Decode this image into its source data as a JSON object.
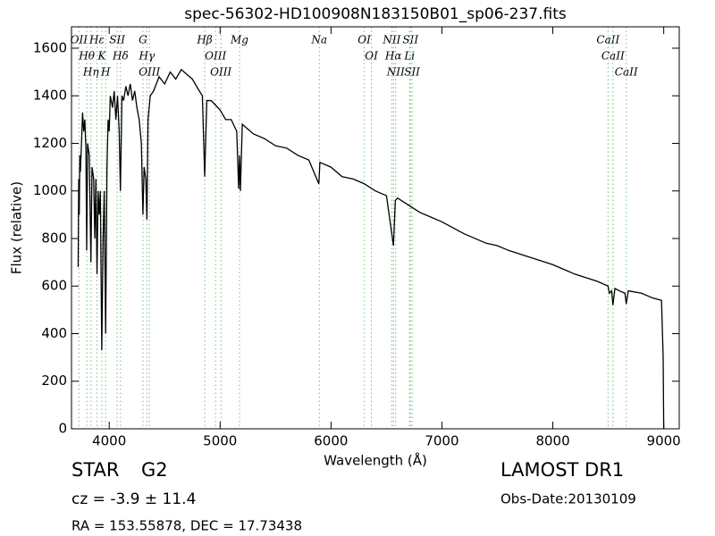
{
  "chart_data": {
    "type": "line",
    "title": "spec-56302-HD100908N183150B01_sp06-237.fits",
    "xlabel": "Wavelength (Å)",
    "ylabel": "Flux (relative)",
    "xlim": [
      3660,
      9140
    ],
    "ylim": [
      0,
      1690
    ],
    "xticks": [
      4000,
      5000,
      6000,
      7000,
      8000,
      9000
    ],
    "yticks": [
      0,
      200,
      400,
      600,
      800,
      1000,
      1200,
      1400,
      1600
    ],
    "x": [
      3720,
      3725,
      3730,
      3735,
      3740,
      3750,
      3760,
      3770,
      3780,
      3790,
      3797,
      3805,
      3820,
      3835,
      3845,
      3860,
      3870,
      3880,
      3890,
      3900,
      3910,
      3920,
      3933,
      3945,
      3955,
      3968,
      3980,
      3990,
      4000,
      4010,
      4030,
      4045,
      4060,
      4075,
      4090,
      4101,
      4115,
      4130,
      4150,
      4170,
      4190,
      4210,
      4230,
      4250,
      4270,
      4290,
      4304,
      4315,
      4330,
      4340,
      4350,
      4370,
      4400,
      4450,
      4500,
      4550,
      4600,
      4650,
      4700,
      4750,
      4800,
      4840,
      4861,
      4880,
      4920,
      4960,
      5000,
      5050,
      5100,
      5150,
      5167,
      5175,
      5183,
      5200,
      5250,
      5300,
      5400,
      5500,
      5600,
      5700,
      5800,
      5890,
      5900,
      6000,
      6100,
      6200,
      6300,
      6400,
      6500,
      6563,
      6580,
      6600,
      6700,
      6800,
      6900,
      7000,
      7200,
      7400,
      7500,
      7600,
      7800,
      8000,
      8200,
      8400,
      8498,
      8510,
      8530,
      8542,
      8560,
      8600,
      8650,
      8662,
      8680,
      8800,
      8900,
      8980,
      8995,
      9000
    ],
    "series": [
      {
        "name": "Flux",
        "color": "#000000",
        "values": [
          680,
          1050,
          900,
          1150,
          1080,
          1200,
          1330,
          1250,
          1300,
          1180,
          750,
          1200,
          1150,
          700,
          1100,
          1050,
          800,
          1050,
          650,
          1000,
          900,
          1000,
          330,
          800,
          1000,
          400,
          1100,
          1300,
          1250,
          1400,
          1350,
          1420,
          1300,
          1400,
          1250,
          1000,
          1400,
          1380,
          1440,
          1400,
          1450,
          1380,
          1420,
          1350,
          1300,
          1200,
          900,
          1100,
          1050,
          880,
          1300,
          1400,
          1420,
          1480,
          1450,
          1500,
          1470,
          1510,
          1490,
          1470,
          1430,
          1400,
          1060,
          1380,
          1380,
          1360,
          1340,
          1300,
          1300,
          1250,
          1010,
          1150,
          1000,
          1280,
          1260,
          1240,
          1220,
          1190,
          1180,
          1150,
          1130,
          1030,
          1120,
          1100,
          1060,
          1050,
          1030,
          1000,
          980,
          770,
          960,
          970,
          940,
          910,
          890,
          870,
          820,
          780,
          770,
          750,
          720,
          690,
          650,
          620,
          600,
          570,
          580,
          520,
          590,
          580,
          570,
          525,
          580,
          570,
          550,
          540,
          300,
          0
        ]
      }
    ],
    "line_color": "#77c077",
    "lines": [
      {
        "name": "OII",
        "wavelength": 3727
      },
      {
        "name": "Hθ",
        "wavelength": 3798
      },
      {
        "name": "Hη",
        "wavelength": 3835
      },
      {
        "name": "Hε",
        "wavelength": 3889
      },
      {
        "name": "K",
        "wavelength": 3934
      },
      {
        "name": "H",
        "wavelength": 3968
      },
      {
        "name": "SII",
        "wavelength": 4072
      },
      {
        "name": "Hδ",
        "wavelength": 4102
      },
      {
        "name": "G",
        "wavelength": 4304
      },
      {
        "name": "Hγ",
        "wavelength": 4340
      },
      {
        "name": "OIII",
        "wavelength": 4363
      },
      {
        "name": "Hβ",
        "wavelength": 4861
      },
      {
        "name": "OIII",
        "wavelength": 4959
      },
      {
        "name": "OIII",
        "wavelength": 5007
      },
      {
        "name": "Mg",
        "wavelength": 5175
      },
      {
        "name": "Na",
        "wavelength": 5894
      },
      {
        "name": "OI",
        "wavelength": 6300
      },
      {
        "name": "OI",
        "wavelength": 6364
      },
      {
        "name": "NII",
        "wavelength": 6548
      },
      {
        "name": "Hα",
        "wavelength": 6563
      },
      {
        "name": "NII",
        "wavelength": 6583
      },
      {
        "name": "Li",
        "wavelength": 6708
      },
      {
        "name": "SII",
        "wavelength": 6716
      },
      {
        "name": "SII",
        "wavelength": 6731
      },
      {
        "name": "CaII",
        "wavelength": 8498
      },
      {
        "name": "CaII",
        "wavelength": 8542
      },
      {
        "name": "CaII",
        "wavelength": 8662
      }
    ]
  },
  "info": {
    "class": "STAR",
    "subclass": "G2",
    "survey": "LAMOST DR1",
    "cz": "cz = -3.9 ± 11.4",
    "obs_date": "Obs-Date:20130109",
    "coords": "RA = 153.55878, DEC = 17.73438"
  }
}
